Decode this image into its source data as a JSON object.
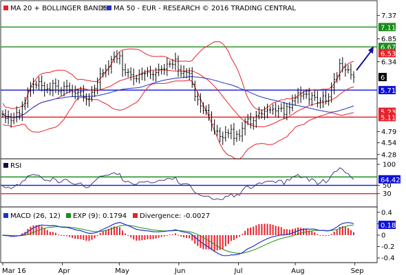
{
  "chart_data": [
    {
      "type": "candlestick",
      "panel": "price",
      "legend": [
        {
          "label": "MA 20 + BOLLINGER BANDS",
          "color": "#e8202a"
        },
        {
          "label": "MA 50 - EUR - RESEARCH © 2016 TRADING CENTRAL",
          "color": "#2030c8"
        }
      ],
      "legend_glyph": "®",
      "yticks": [
        "7.37",
        "6.85",
        "6.34",
        "6",
        "4.79",
        "4.54",
        "4.28"
      ],
      "ytick_values": [
        7.37,
        6.85,
        6.34,
        6.0,
        4.79,
        4.54,
        4.28
      ],
      "ylim": [
        4.2,
        7.68
      ],
      "levels": [
        {
          "value": 7.11,
          "label": "7.11",
          "color": "#1a8c1a"
        },
        {
          "value": 6.67,
          "label": "6.67",
          "color": "#1a8c1a"
        },
        {
          "value": 6.53,
          "label": "6.53",
          "color": "#e8202a"
        },
        {
          "value": 5.71,
          "label": "5.71",
          "color": "#1010d8"
        },
        {
          "value": 5.23,
          "label": "5.23",
          "color": "#e8202a"
        },
        {
          "value": 5.11,
          "label": "5.11",
          "color": "#e8202a"
        }
      ],
      "last_price": {
        "value": 6.0,
        "label": "6"
      },
      "forecast_arrow": {
        "from": 6.15,
        "to": 6.67
      },
      "candles_close": [
        5.18,
        5.08,
        5.12,
        5.03,
        5.1,
        5.21,
        5.18,
        5.35,
        5.42,
        5.69,
        5.78,
        5.84,
        5.82,
        5.9,
        5.81,
        5.72,
        5.74,
        5.7,
        5.86,
        5.8,
        5.68,
        5.7,
        5.79,
        5.8,
        5.72,
        5.67,
        5.64,
        5.66,
        5.68,
        5.56,
        5.5,
        5.53,
        5.66,
        5.75,
        5.88,
        6.07,
        6.1,
        6.17,
        6.23,
        6.39,
        6.46,
        6.41,
        6.47,
        6.16,
        6.1,
        6.11,
        6.05,
        5.97,
        5.96,
        6.06,
        6.07,
        6.08,
        6.11,
        6.06,
        6.05,
        6.1,
        6.16,
        6.18,
        6.18,
        6.29,
        6.29,
        6.28,
        6.4,
        6.16,
        6.08,
        6.12,
        6.1,
        6.08,
        5.84,
        5.57,
        5.5,
        5.36,
        5.26,
        5.26,
        5.16,
        4.95,
        4.8,
        4.8,
        4.68,
        4.65,
        4.77,
        4.75,
        4.84,
        4.64,
        4.73,
        4.69,
        4.86,
        5.01,
        5.07,
        4.96,
        5.03,
        5.14,
        5.2,
        5.18,
        5.24,
        5.27,
        5.27,
        5.29,
        5.25,
        5.3,
        5.31,
        5.17,
        5.34,
        5.32,
        5.47,
        5.54,
        5.65,
        5.58,
        5.62,
        5.62,
        5.51,
        5.59,
        5.55,
        5.43,
        5.47,
        5.58,
        5.47,
        5.56,
        5.77,
        5.95,
        6.03,
        6.3,
        6.23,
        6.16,
        6.16,
        6.05,
        6.0
      ]
    },
    {
      "type": "line",
      "panel": "rsi",
      "legend": [
        {
          "label": "RSI",
          "color": "#101040"
        }
      ],
      "yticks": [
        "100",
        "50",
        "30"
      ],
      "ytick_values": [
        100,
        50,
        30
      ],
      "ylim": [
        0,
        110
      ],
      "levels": [
        {
          "value": 70,
          "color": "#1a8c1a"
        },
        {
          "value": 50,
          "color": "#1010d8"
        },
        {
          "value": 30,
          "color": "#e8202a"
        }
      ],
      "current": {
        "value": 64.42,
        "label": "64.42"
      },
      "values": [
        48,
        44,
        46,
        42,
        46,
        52,
        50,
        60,
        62,
        72,
        74,
        76,
        74,
        74,
        68,
        62,
        62,
        60,
        68,
        64,
        56,
        58,
        64,
        64,
        58,
        54,
        52,
        54,
        56,
        48,
        44,
        46,
        54,
        60,
        66,
        72,
        72,
        74,
        74,
        78,
        80,
        76,
        78,
        62,
        58,
        60,
        56,
        52,
        52,
        58,
        58,
        58,
        60,
        56,
        56,
        58,
        62,
        62,
        62,
        66,
        66,
        64,
        70,
        56,
        52,
        54,
        54,
        52,
        42,
        32,
        30,
        26,
        24,
        24,
        24,
        18,
        16,
        18,
        16,
        16,
        24,
        24,
        30,
        22,
        28,
        26,
        38,
        46,
        48,
        42,
        46,
        52,
        56,
        54,
        58,
        60,
        60,
        60,
        56,
        62,
        62,
        52,
        64,
        62,
        70,
        72,
        76,
        68,
        70,
        70,
        60,
        66,
        62,
        52,
        56,
        64,
        56,
        62,
        74,
        82,
        84,
        92,
        88,
        80,
        78,
        70,
        64
      ]
    },
    {
      "type": "line",
      "panel": "macd",
      "legend": [
        {
          "label": "MACD (26, 12)",
          "color": "#2030c8"
        },
        {
          "label": "EXP (9): 0.1794",
          "color": "#1a8c1a"
        },
        {
          "label": "Divergence: -0.0027",
          "color": "#e8202a"
        }
      ],
      "yticks": [
        "0.4",
        "0.2",
        "0",
        "-0.2",
        "-0.4"
      ],
      "ytick_values": [
        0.4,
        0.2,
        0.0,
        -0.2,
        -0.4
      ],
      "ylim": [
        -0.47,
        0.47
      ],
      "current": {
        "value": 0.18,
        "label": "0.18"
      },
      "macd_first": 0.03,
      "macd_last": 0.18,
      "signal_last": 0.1794,
      "divergence_last": -0.0027
    }
  ],
  "x_axis": {
    "months": [
      {
        "label": "Mar 16",
        "index": 0
      },
      {
        "label": "Apr",
        "index": 22
      },
      {
        "label": "May",
        "index": 43
      },
      {
        "label": "Jun",
        "index": 65
      },
      {
        "label": "Jul",
        "index": 87
      },
      {
        "label": "Aug",
        "index": 108
      },
      {
        "label": "Sep",
        "index": 130
      }
    ],
    "count": 150
  }
}
